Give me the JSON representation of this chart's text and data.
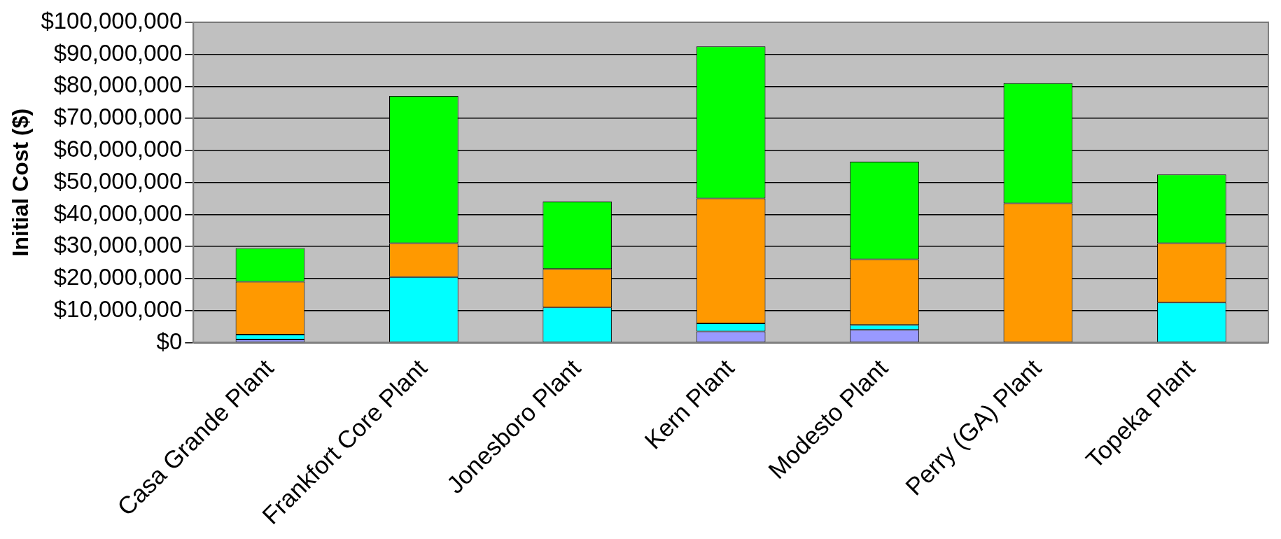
{
  "chart_data": {
    "type": "bar",
    "ylabel": "Initial Cost ($)",
    "stacked": true,
    "grid": "y",
    "legend": false,
    "categories": [
      "Casa Grande Plant",
      "Frankfort Core Plant",
      "Jonesboro Plant",
      "Kern Plant",
      "Modesto Plant",
      "Perry (GA) Plant",
      "Topeka Plant"
    ],
    "series": [
      {
        "color": "#9999ff",
        "values": [
          1000000,
          null,
          null,
          3500000,
          4000000,
          null,
          null
        ]
      },
      {
        "color": "#00ffff",
        "values": [
          1500000,
          20500000,
          11000000,
          2500000,
          1500000,
          null,
          12500000
        ]
      },
      {
        "color": "#ff9900",
        "values": [
          16500000,
          10500000,
          12000000,
          39000000,
          20500000,
          43500000,
          18500000
        ]
      },
      {
        "color": "#00ff00",
        "values": [
          10500000,
          46000000,
          21000000,
          47500000,
          30500000,
          37500000,
          21500000
        ]
      }
    ],
    "ylim": [
      0,
      100000000
    ],
    "yticks": [
      {
        "value": 0,
        "label": "$0"
      },
      {
        "value": 10000000,
        "label": "$10,000,000"
      },
      {
        "value": 20000000,
        "label": "$20,000,000"
      },
      {
        "value": 30000000,
        "label": "$30,000,000"
      },
      {
        "value": 40000000,
        "label": "$40,000,000"
      },
      {
        "value": 50000000,
        "label": "$50,000,000"
      },
      {
        "value": 60000000,
        "label": "$60,000,000"
      },
      {
        "value": 70000000,
        "label": "$70,000,000"
      },
      {
        "value": 80000000,
        "label": "$80,000,000"
      },
      {
        "value": 90000000,
        "label": "$90,000,000"
      },
      {
        "value": 100000000,
        "label": "$100,000,000"
      }
    ]
  }
}
